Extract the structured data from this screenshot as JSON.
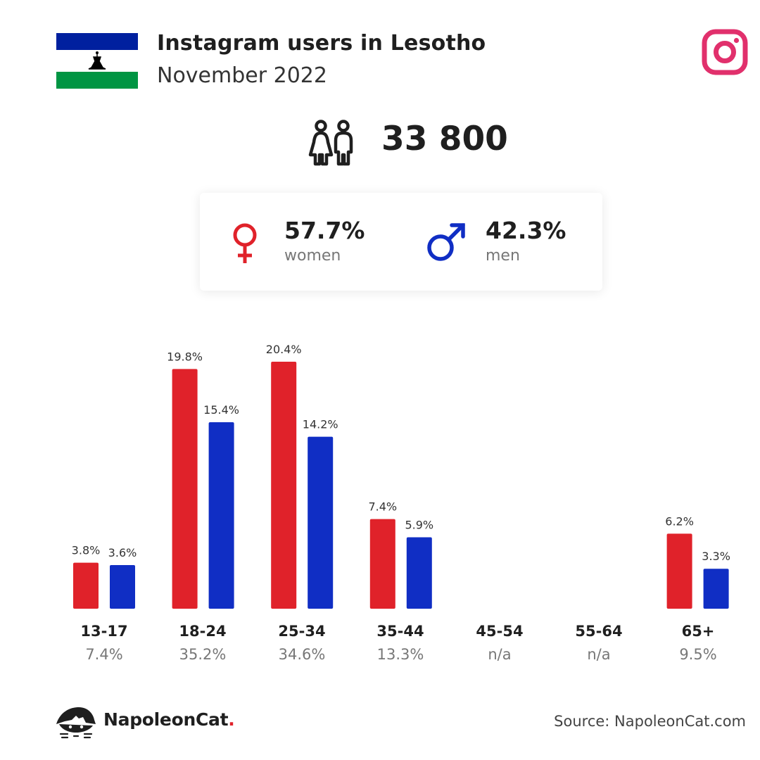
{
  "header": {
    "title": "Instagram users in Lesotho",
    "subtitle": "November 2022",
    "flag_icon": "lesotho-flag-icon",
    "platform_icon": "instagram-icon",
    "platform_color": "#e1306c"
  },
  "total": {
    "icon": "people-icon",
    "value": "33 800"
  },
  "gender": {
    "women": {
      "icon": "female-symbol-icon",
      "pct": "57.7%",
      "label": "women",
      "color": "#e0222a"
    },
    "men": {
      "icon": "male-symbol-icon",
      "pct": "42.3%",
      "label": "men",
      "color": "#102ec4"
    }
  },
  "chart_data": {
    "type": "bar",
    "categories": [
      "13-17",
      "18-24",
      "25-34",
      "35-44",
      "45-54",
      "55-64",
      "65+"
    ],
    "category_totals": [
      "7.4%",
      "35.2%",
      "34.6%",
      "13.3%",
      "n/a",
      "n/a",
      "9.5%"
    ],
    "series": [
      {
        "key": "women",
        "color": "#e0222a",
        "values": [
          3.8,
          19.8,
          20.4,
          7.4,
          null,
          null,
          6.2
        ],
        "labels": [
          "3.8%",
          "19.8%",
          "20.4%",
          "7.4%",
          "",
          "",
          "6.2%"
        ]
      },
      {
        "key": "men",
        "color": "#102ec4",
        "values": [
          3.6,
          15.4,
          14.2,
          5.9,
          null,
          null,
          3.3
        ],
        "labels": [
          "3.6%",
          "15.4%",
          "14.2%",
          "5.9%",
          "",
          "",
          "3.3%"
        ]
      }
    ],
    "ylim": [
      0,
      20.4
    ],
    "grid": false
  },
  "footer": {
    "brand_icon": "napoleoncat-logo-icon",
    "brand_name": "NapoleonCat",
    "brand_dot": ".",
    "source": "Source: NapoleonCat.com"
  }
}
